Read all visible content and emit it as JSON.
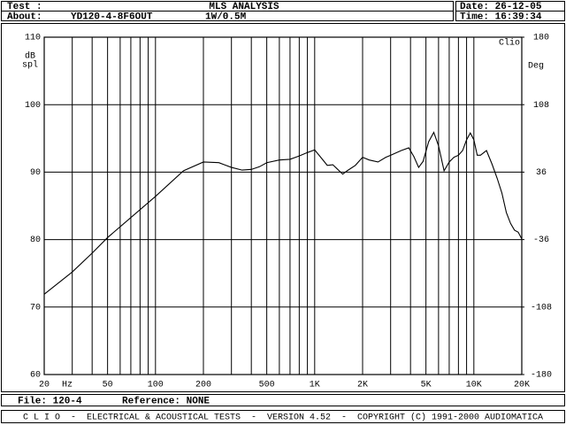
{
  "header": {
    "test_label": "Test :",
    "title": "MLS ANALYSIS",
    "date": "Date: 26-12-05",
    "about_label": "About:",
    "about_value": "YD120-4-8F6OUT",
    "level": "1W/0.5M",
    "time": "Time: 16:39:34"
  },
  "chart_data": {
    "type": "line",
    "xscale": "log",
    "grid": true,
    "brand": "Clio",
    "ylabel_lines": [
      "dB",
      "spl"
    ],
    "y2label": "Deg",
    "x_unit": "Hz",
    "x": [
      20,
      30,
      40,
      50,
      100,
      150,
      200,
      250,
      300,
      350,
      400,
      450,
      500,
      600,
      700,
      800,
      900,
      1000,
      1100,
      1200,
      1300,
      1500,
      1600,
      1800,
      2000,
      2200,
      2500,
      2800,
      3000,
      3500,
      3900,
      4200,
      4500,
      4800,
      5200,
      5600,
      6000,
      6500,
      7000,
      7500,
      8000,
      8500,
      9000,
      9500,
      10000,
      10500,
      11000,
      12000,
      13000,
      14000,
      15000,
      16000,
      17000,
      18000,
      19000,
      20000
    ],
    "series": [
      {
        "color": "#000000",
        "values": [
          71.9,
          75.2,
          78.0,
          80.3,
          86.4,
          90.2,
          91.5,
          91.4,
          90.7,
          90.3,
          90.4,
          90.8,
          91.4,
          91.8,
          91.9,
          92.4,
          92.9,
          93.3,
          92.1,
          91.0,
          91.1,
          89.7,
          90.2,
          91.0,
          92.2,
          91.8,
          91.5,
          92.2,
          92.5,
          93.2,
          93.6,
          92.3,
          90.7,
          91.6,
          94.5,
          95.9,
          93.9,
          90.2,
          91.5,
          92.2,
          92.5,
          93.2,
          94.8,
          95.8,
          94.8,
          92.5,
          92.5,
          93.2,
          91.2,
          89.1,
          86.9,
          84.0,
          82.4,
          81.4,
          81.1,
          80.1
        ]
      }
    ],
    "xlim": [
      20,
      20000
    ],
    "ylim": [
      60,
      110
    ],
    "y2lim": [
      -180,
      180
    ],
    "xticks": [
      20,
      50,
      100,
      200,
      500,
      {
        "value": 1000,
        "label": "1K"
      },
      {
        "value": 2000,
        "label": "2K"
      },
      {
        "value": 5000,
        "label": "5K"
      },
      {
        "value": 10000,
        "label": "10K"
      },
      {
        "value": 20000,
        "label": "20K"
      }
    ],
    "x_minor_grid": [
      30,
      40,
      60,
      70,
      80,
      90,
      300,
      400,
      600,
      700,
      800,
      900,
      3000,
      4000,
      6000,
      7000,
      8000,
      9000
    ],
    "yticks": [
      60,
      70,
      80,
      90,
      100,
      110
    ],
    "y2ticks": [
      -180,
      -108,
      -36,
      36,
      108,
      180
    ]
  },
  "footer": {
    "file": "File: 120-4",
    "reference": "Reference: NONE",
    "credits": "C L I O  -  ELECTRICAL & ACOUSTICAL TESTS  -  VERSION 4.52  -  COPYRIGHT (C) 1991-2000 AUDIOMATICA"
  }
}
